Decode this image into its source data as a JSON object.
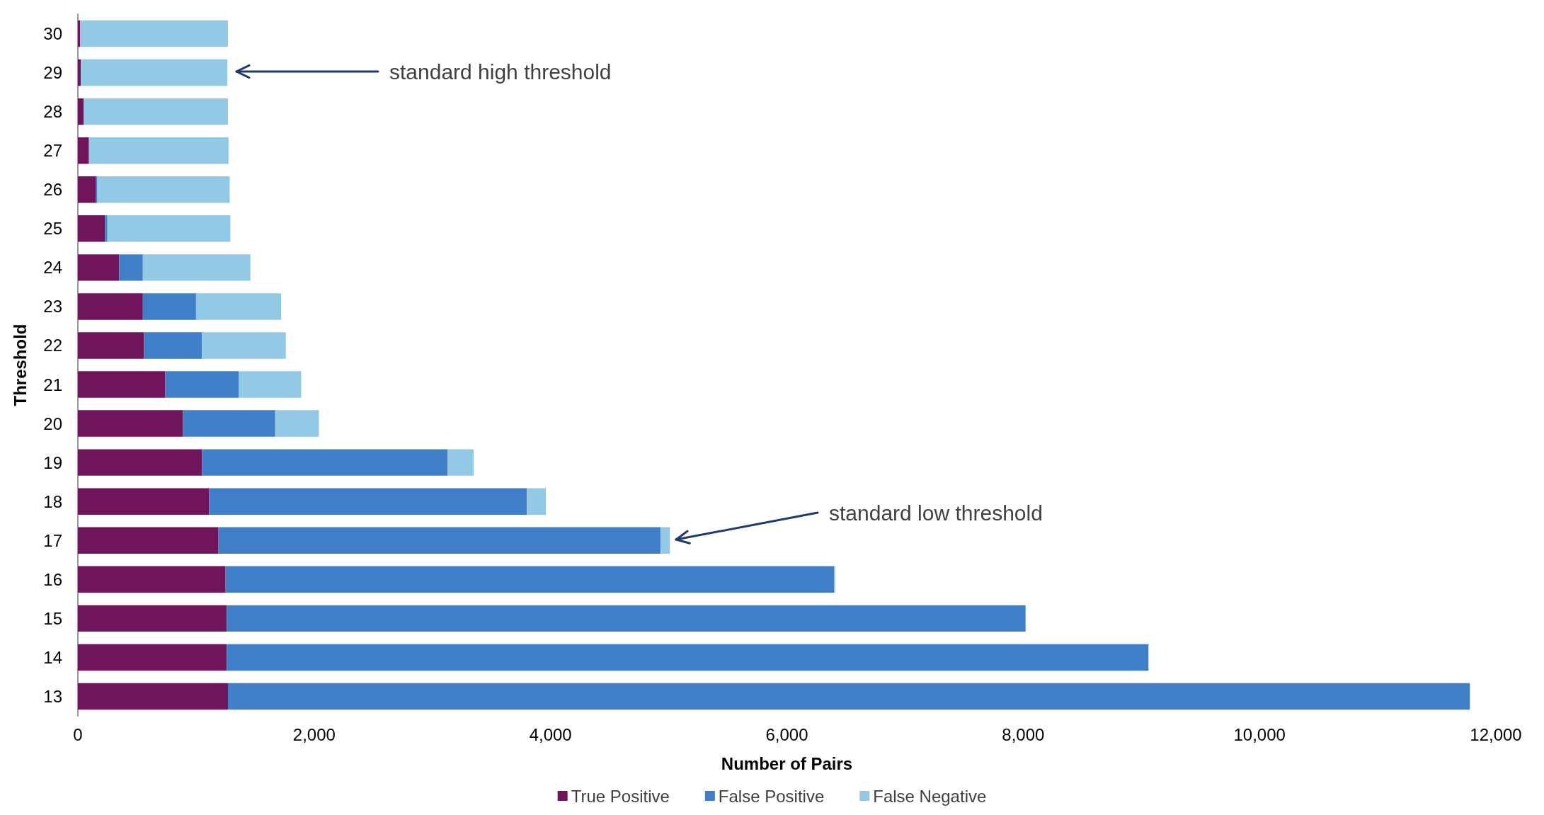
{
  "chart_data": {
    "type": "bar",
    "orientation": "horizontal",
    "stacked": true,
    "xlabel": "Number of Pairs",
    "ylabel": "Threshold",
    "categories": [
      "30",
      "29",
      "28",
      "27",
      "26",
      "25",
      "24",
      "23",
      "22",
      "21",
      "20",
      "19",
      "18",
      "17",
      "16",
      "15",
      "14",
      "13"
    ],
    "series": [
      {
        "name": "True Positive",
        "color": "#70145c",
        "values": [
          20,
          25,
          50,
          90,
          150,
          230,
          350,
          550,
          560,
          740,
          890,
          1050,
          1110,
          1190,
          1250,
          1260,
          1260,
          1270
        ]
      },
      {
        "name": "False Positive",
        "color": "#407fc8",
        "values": [
          0,
          0,
          0,
          5,
          15,
          20,
          200,
          450,
          490,
          620,
          780,
          2080,
          2690,
          3740,
          5150,
          6760,
          7800,
          10510
        ]
      },
      {
        "name": "False Negative",
        "color": "#93c9e4",
        "values": [
          1250,
          1240,
          1220,
          1180,
          1120,
          1040,
          910,
          720,
          710,
          530,
          370,
          220,
          160,
          80,
          10,
          0,
          0,
          0
        ]
      }
    ],
    "xlim": [
      0,
      12000
    ],
    "xticks": [
      0,
      {
        "value": 2000,
        "label": "2,000"
      },
      {
        "value": 4000,
        "label": "4,000"
      },
      {
        "value": 6000,
        "label": "6,000"
      },
      {
        "value": 8000,
        "label": "8,000"
      },
      {
        "value": 10000,
        "label": "10,000"
      },
      {
        "value": 12000,
        "label": "12,000"
      }
    ],
    "annotations": [
      "standard high threshold",
      "standard low threshold"
    ],
    "grid": false,
    "legend": "bottom"
  }
}
